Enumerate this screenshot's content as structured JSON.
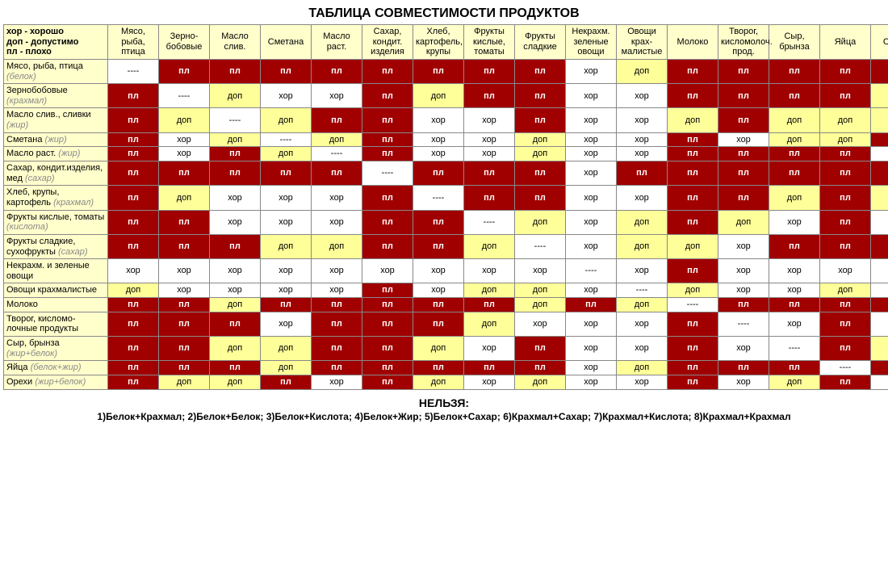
{
  "title": "ТАБЛИЦА СОВМЕСТИМОСТИ ПРОДУКТОВ",
  "legend": {
    "hor": "хор - хорошо",
    "dop": "доп - допустимо",
    "pl": "пл - плохо"
  },
  "labels": {
    "pl": "пл",
    "hor": "хор",
    "dop": "доп",
    "self": "----"
  },
  "colors": {
    "pl_bg": "#a00000",
    "pl_fg": "#ffffff",
    "hor_bg": "#ffffff",
    "hor_fg": "#000000",
    "dop_bg": "#ffff99",
    "dop_fg": "#000000",
    "head_bg": "#ffffcc",
    "border": "#888888"
  },
  "columns": [
    "Мясо, рыба, птица",
    "Зерно-бобовые",
    "Масло слив.",
    "Сметана",
    "Масло раст.",
    "Сахар, кондит. изделия",
    "Хлеб, картофель, крупы",
    "Фрукты кислые, томаты",
    "Фрукты сладкие",
    "Некрахм. зеленые овощи",
    "Овощи крах-малистые",
    "Молоко",
    "Творог, кисломолоч. прод.",
    "Сыр, брынза",
    "Яйца",
    "Орехи"
  ],
  "rows": [
    {
      "label": "Мясо, рыба, птица",
      "sub": "(белок)"
    },
    {
      "label": "Зернобобовые",
      "sub": "(крахмал)"
    },
    {
      "label": "Масло слив., сливки",
      "sub": "(жир)"
    },
    {
      "label": "Сметана",
      "sub": "(жир)"
    },
    {
      "label": "Масло раст.",
      "sub": "(жир)"
    },
    {
      "label": "Сахар, кондит.изделия, мед",
      "sub": "(сахар)"
    },
    {
      "label": "Хлеб, крупы, картофель",
      "sub": "(крахмал)"
    },
    {
      "label": "Фрукты кислые, томаты",
      "sub": "(кислота)"
    },
    {
      "label": "Фрукты сладкие, сухофрукты",
      "sub": "(сахар)"
    },
    {
      "label": "Некрахм. и зеленые овощи",
      "sub": ""
    },
    {
      "label": "Овощи крахмалистые",
      "sub": ""
    },
    {
      "label": "Молоко",
      "sub": ""
    },
    {
      "label": "Творог, кисломо-лочные продукты",
      "sub": ""
    },
    {
      "label": "Сыр, брынза",
      "sub": "(жир+белок)"
    },
    {
      "label": "Яйца",
      "sub": "(белок+жир)"
    },
    {
      "label": "Орехи",
      "sub": "(жир+белок)"
    }
  ],
  "matrix": [
    [
      "self",
      "pl",
      "pl",
      "pl",
      "pl",
      "pl",
      "pl",
      "pl",
      "pl",
      "hor",
      "dop",
      "pl",
      "pl",
      "pl",
      "pl",
      "pl"
    ],
    [
      "pl",
      "self",
      "dop",
      "hor",
      "hor",
      "pl",
      "dop",
      "pl",
      "pl",
      "hor",
      "hor",
      "pl",
      "pl",
      "pl",
      "pl",
      "dop"
    ],
    [
      "pl",
      "dop",
      "self",
      "dop",
      "pl",
      "pl",
      "hor",
      "hor",
      "pl",
      "hor",
      "hor",
      "dop",
      "pl",
      "dop",
      "dop",
      "dop"
    ],
    [
      "pl",
      "hor",
      "dop",
      "self",
      "dop",
      "pl",
      "hor",
      "hor",
      "dop",
      "hor",
      "hor",
      "pl",
      "hor",
      "dop",
      "dop",
      "pl"
    ],
    [
      "pl",
      "hor",
      "pl",
      "dop",
      "self",
      "pl",
      "hor",
      "hor",
      "dop",
      "hor",
      "hor",
      "pl",
      "pl",
      "pl",
      "pl",
      "hor"
    ],
    [
      "pl",
      "pl",
      "pl",
      "pl",
      "pl",
      "self",
      "pl",
      "pl",
      "pl",
      "hor",
      "pl",
      "pl",
      "pl",
      "pl",
      "pl",
      "pl"
    ],
    [
      "pl",
      "dop",
      "hor",
      "hor",
      "hor",
      "pl",
      "self",
      "pl",
      "pl",
      "hor",
      "hor",
      "pl",
      "pl",
      "dop",
      "pl",
      "dop"
    ],
    [
      "pl",
      "pl",
      "hor",
      "hor",
      "hor",
      "pl",
      "pl",
      "self",
      "dop",
      "hor",
      "dop",
      "pl",
      "dop",
      "hor",
      "pl",
      "hor"
    ],
    [
      "pl",
      "pl",
      "pl",
      "dop",
      "dop",
      "pl",
      "pl",
      "dop",
      "self",
      "hor",
      "dop",
      "dop",
      "hor",
      "pl",
      "pl",
      "pl"
    ],
    [
      "hor",
      "hor",
      "hor",
      "hor",
      "hor",
      "hor",
      "hor",
      "hor",
      "hor",
      "self",
      "hor",
      "pl",
      "hor",
      "hor",
      "hor",
      "hor"
    ],
    [
      "dop",
      "hor",
      "hor",
      "hor",
      "hor",
      "pl",
      "hor",
      "dop",
      "dop",
      "hor",
      "self",
      "dop",
      "hor",
      "hor",
      "dop",
      "hor"
    ],
    [
      "pl",
      "pl",
      "dop",
      "pl",
      "pl",
      "pl",
      "pl",
      "pl",
      "dop",
      "pl",
      "dop",
      "self",
      "pl",
      "pl",
      "pl",
      "pl"
    ],
    [
      "pl",
      "pl",
      "pl",
      "hor",
      "pl",
      "pl",
      "pl",
      "dop",
      "hor",
      "hor",
      "hor",
      "pl",
      "self",
      "hor",
      "pl",
      "hor"
    ],
    [
      "pl",
      "pl",
      "dop",
      "dop",
      "pl",
      "pl",
      "dop",
      "hor",
      "pl",
      "hor",
      "hor",
      "pl",
      "hor",
      "self",
      "pl",
      "dop"
    ],
    [
      "pl",
      "pl",
      "pl",
      "dop",
      "pl",
      "pl",
      "pl",
      "pl",
      "pl",
      "hor",
      "dop",
      "pl",
      "pl",
      "pl",
      "self",
      "pl"
    ],
    [
      "pl",
      "dop",
      "dop",
      "pl",
      "hor",
      "pl",
      "dop",
      "hor",
      "dop",
      "hor",
      "hor",
      "pl",
      "hor",
      "dop",
      "pl",
      "self"
    ]
  ],
  "footer": {
    "title": "НЕЛЬЗЯ:",
    "rules": "1)Белок+Крахмал;  2)Белок+Белок;  3)Белок+Кислота;  4)Белок+Жир;  5)Белок+Сахар;  6)Крахмал+Сахар;  7)Крахмал+Кислота;  8)Крахмал+Крахмал"
  }
}
